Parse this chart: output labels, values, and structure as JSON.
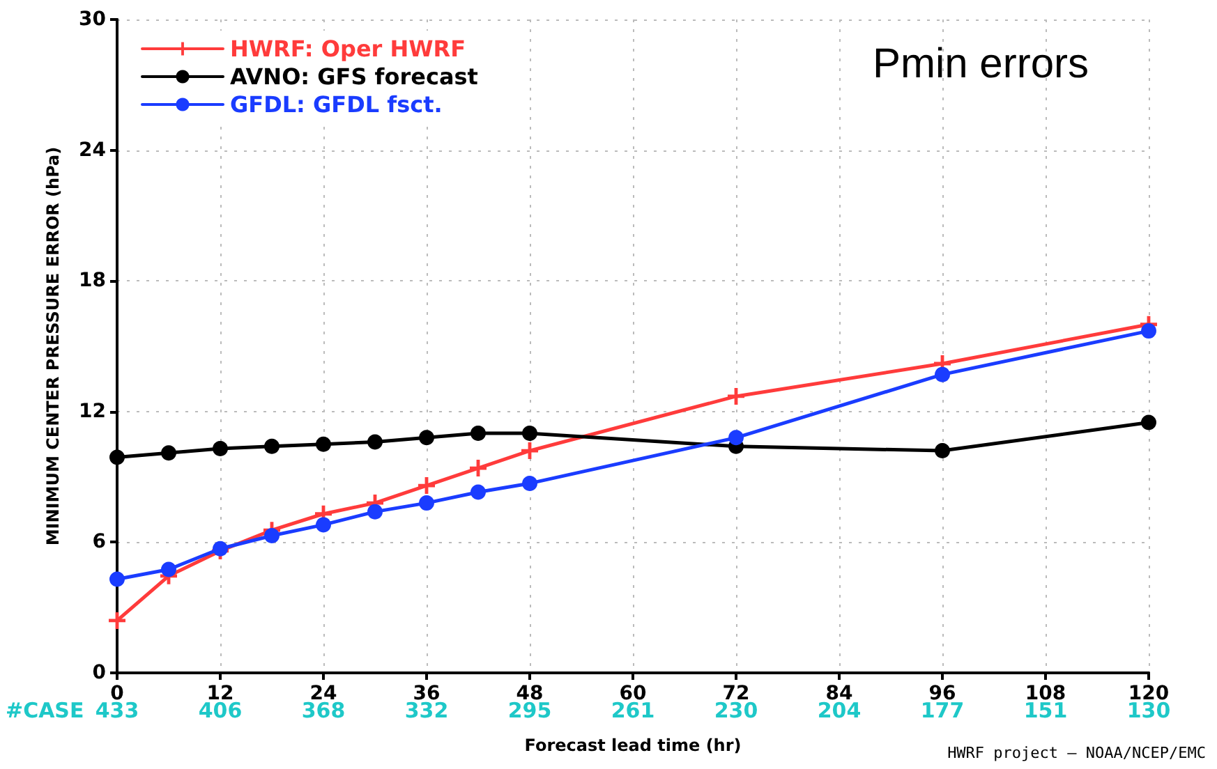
{
  "chart_data": {
    "type": "line",
    "title": "Pmin errors",
    "xlabel": "Forecast lead time (hr)",
    "ylabel": "MINIMUM CENTER PRESSURE ERROR (hPa)",
    "x": [
      0,
      6,
      12,
      18,
      24,
      30,
      36,
      42,
      48,
      72,
      96,
      120
    ],
    "series": [
      {
        "name": "HWRF: Oper HWRF",
        "color": "#ff3b3b",
        "marker": "cross",
        "values": [
          2.4,
          4.45,
          5.6,
          6.55,
          7.3,
          7.8,
          8.6,
          9.4,
          10.2,
          12.7,
          14.2,
          16.0
        ]
      },
      {
        "name": "AVNO: GFS forecast",
        "color": "#000000",
        "marker": "circle",
        "values": [
          9.9,
          10.1,
          10.3,
          10.4,
          10.5,
          10.6,
          10.8,
          11.0,
          11.0,
          10.4,
          10.2,
          11.5
        ]
      },
      {
        "name": "GFDL: GFDL fsct.",
        "color": "#1a3cff",
        "marker": "circle",
        "values": [
          4.3,
          4.75,
          5.7,
          6.3,
          6.8,
          7.4,
          7.8,
          8.3,
          8.7,
          10.8,
          13.7,
          15.7
        ]
      }
    ],
    "xlim": [
      0,
      120
    ],
    "xticks": [
      0,
      12,
      24,
      36,
      48,
      60,
      72,
      84,
      96,
      108,
      120
    ],
    "ylim": [
      0,
      30
    ],
    "yticks": [
      0,
      6,
      12,
      18,
      24,
      30
    ],
    "grid": true,
    "legend": "top left",
    "line_style": "solid",
    "annotations": [
      "#CASE",
      "433",
      "406",
      "368",
      "332",
      "295",
      "261",
      "230",
      "204",
      "177",
      "151",
      "130",
      "HWRF project — NOAA/NCEP/EMC"
    ]
  }
}
